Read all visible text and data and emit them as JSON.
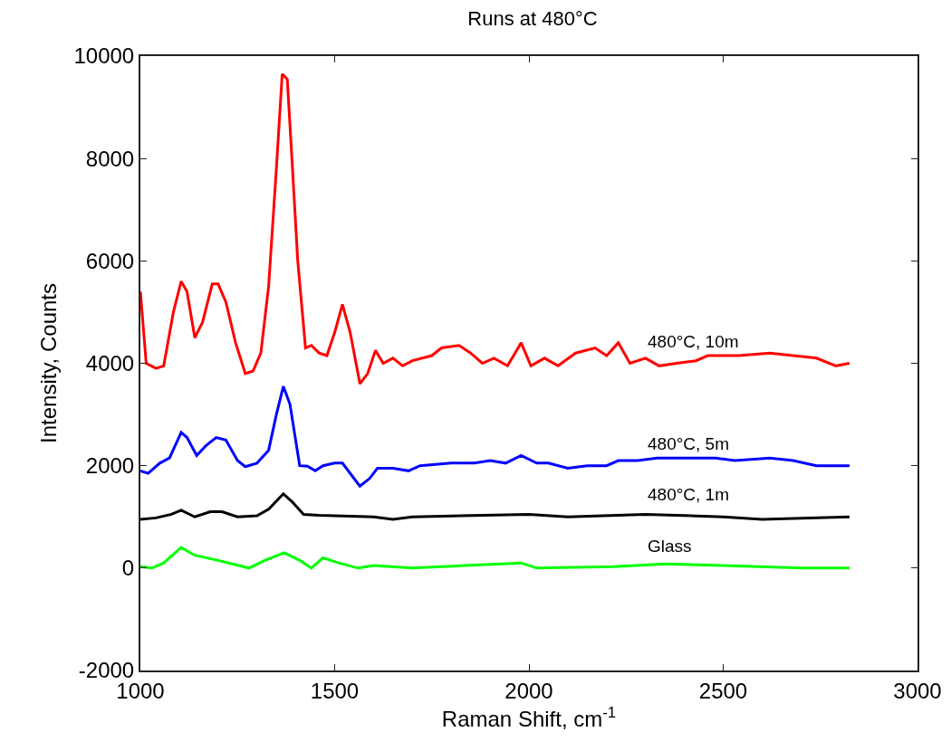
{
  "chart_data": {
    "type": "line",
    "title": "Runs at 480°C",
    "xlabel": "Raman Shift, cm$^{-1}$",
    "ylabel": "Intensity, Counts",
    "xlim": [
      1000,
      3000
    ],
    "xticks": [
      1000,
      1500,
      2000,
      2500,
      3000
    ],
    "ylim": [
      -2000,
      10000
    ],
    "yticks": [
      -2000,
      0,
      2000,
      4000,
      6000,
      8000,
      10000
    ],
    "grid": false,
    "legend": false,
    "marker": "none",
    "line_style": "solid",
    "series": [
      {
        "name": "480°C, 10m",
        "color": "#ff0000",
        "x": [
          1000,
          1015,
          1040,
          1060,
          1085,
          1105,
          1120,
          1140,
          1160,
          1185,
          1200,
          1220,
          1245,
          1270,
          1290,
          1310,
          1330,
          1350,
          1365,
          1378,
          1390,
          1405,
          1425,
          1440,
          1460,
          1480,
          1500,
          1520,
          1540,
          1565,
          1585,
          1605,
          1625,
          1650,
          1675,
          1700,
          1750,
          1775,
          1820,
          1850,
          1880,
          1910,
          1945,
          1980,
          2005,
          2040,
          2075,
          2120,
          2170,
          2200,
          2230,
          2260,
          2300,
          2335,
          2380,
          2430,
          2460,
          2540,
          2620,
          2680,
          2740,
          2790,
          2825
        ],
        "values": [
          5400,
          4000,
          3900,
          3950,
          5000,
          5600,
          5400,
          4500,
          4800,
          5550,
          5550,
          5200,
          4400,
          3800,
          3850,
          4200,
          5500,
          7800,
          9650,
          9550,
          8000,
          6000,
          4300,
          4350,
          4200,
          4150,
          4600,
          5150,
          4600,
          3600,
          3800,
          4250,
          4000,
          4100,
          3950,
          4050,
          4150,
          4300,
          4350,
          4200,
          4000,
          4100,
          3950,
          4400,
          3950,
          4100,
          3950,
          4200,
          4300,
          4150,
          4400,
          4000,
          4100,
          3950,
          4000,
          4050,
          4150,
          4150,
          4200,
          4150,
          4100,
          3950,
          4000
        ]
      },
      {
        "name": "480°C, 5m",
        "color": "#0000ff",
        "x": [
          1000,
          1020,
          1050,
          1075,
          1105,
          1120,
          1145,
          1170,
          1195,
          1220,
          1250,
          1270,
          1300,
          1330,
          1350,
          1368,
          1385,
          1410,
          1430,
          1450,
          1470,
          1500,
          1520,
          1545,
          1565,
          1590,
          1610,
          1650,
          1690,
          1720,
          1800,
          1860,
          1900,
          1940,
          1980,
          2020,
          2050,
          2100,
          2150,
          2200,
          2230,
          2280,
          2330,
          2480,
          2530,
          2620,
          2680,
          2740,
          2825
        ],
        "values": [
          1900,
          1850,
          2050,
          2150,
          2650,
          2550,
          2200,
          2400,
          2550,
          2500,
          2100,
          1980,
          2050,
          2300,
          3000,
          3550,
          3200,
          2000,
          1990,
          1900,
          2000,
          2050,
          2050,
          1800,
          1600,
          1750,
          1950,
          1950,
          1900,
          2000,
          2050,
          2050,
          2100,
          2050,
          2200,
          2050,
          2050,
          1950,
          2000,
          2000,
          2100,
          2100,
          2150,
          2150,
          2100,
          2150,
          2100,
          2000,
          2000
        ]
      },
      {
        "name": "480°C, 1m",
        "color": "#000000",
        "x": [
          1000,
          1040,
          1080,
          1105,
          1140,
          1180,
          1210,
          1250,
          1300,
          1330,
          1368,
          1390,
          1420,
          1460,
          1500,
          1600,
          1650,
          1700,
          2000,
          2100,
          2300,
          2500,
          2600,
          2825
        ],
        "values": [
          950,
          980,
          1050,
          1130,
          1000,
          1100,
          1100,
          1000,
          1020,
          1150,
          1450,
          1300,
          1050,
          1030,
          1020,
          1000,
          950,
          1000,
          1050,
          1000,
          1050,
          1000,
          950,
          1000
        ]
      },
      {
        "name": "Glass",
        "color": "#00ff00",
        "x": [
          1000,
          1030,
          1060,
          1105,
          1140,
          1200,
          1280,
          1320,
          1370,
          1410,
          1440,
          1470,
          1510,
          1560,
          1600,
          1700,
          1980,
          2020,
          2220,
          2350,
          2500,
          2700,
          2825
        ],
        "values": [
          30,
          0,
          100,
          400,
          250,
          150,
          0,
          150,
          300,
          150,
          0,
          200,
          100,
          0,
          50,
          0,
          100,
          0,
          30,
          80,
          50,
          0,
          0
        ]
      }
    ]
  }
}
